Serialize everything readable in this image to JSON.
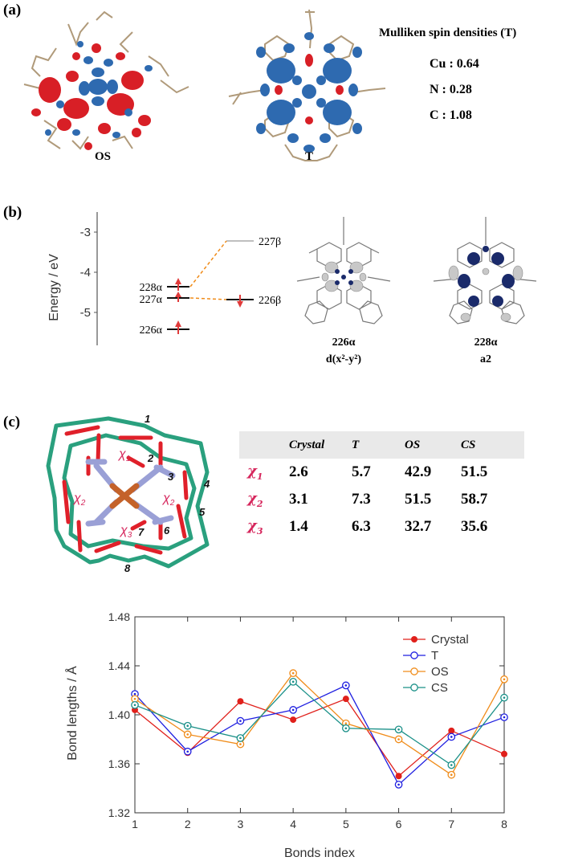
{
  "panel_a": {
    "label": "(a)",
    "mol_os_label": "OS",
    "mol_t_label": "T",
    "spin_title": "Mulliken spin densities (T)",
    "spin_rows": [
      "Cu : 0.64",
      "N : 0.28",
      "C : 1.08"
    ]
  },
  "panel_b": {
    "label": "(b)",
    "y_axis_label": "Energy / eV",
    "y_ticks": [
      "-3",
      "-4",
      "-5"
    ],
    "levels_left": [
      "228α",
      "227α",
      "226α"
    ],
    "level_right_top": "227β",
    "level_right_mid": "226β",
    "orbital1_name": "226α",
    "orbital1_sym": "d(x²-y²)",
    "orbital2_name": "228α",
    "orbital2_sym": "a2"
  },
  "panel_c": {
    "label": "(c)",
    "bond_numbers": [
      "1",
      "2",
      "3",
      "4",
      "5",
      "6",
      "7",
      "8"
    ],
    "chi_labels": [
      "χ1",
      "χ2",
      "χ2",
      "χ3"
    ],
    "table": {
      "headers": [
        "",
        "Crystal",
        "T",
        "OS",
        "CS"
      ],
      "rows": [
        {
          "chi": "χ",
          "sub": "1",
          "values": [
            "2.6",
            "5.7",
            "42.9",
            "51.5"
          ]
        },
        {
          "chi": "χ",
          "sub": "2",
          "values": [
            "3.1",
            "7.3",
            "51.5",
            "58.7"
          ]
        },
        {
          "chi": "χ",
          "sub": "3",
          "values": [
            "1.4",
            "6.3",
            "32.7",
            "35.6"
          ]
        }
      ]
    }
  },
  "colors": {
    "crystal": "#e0201b",
    "t": "#1f1fe0",
    "os": "#f08c1a",
    "cs": "#1a9088",
    "spin_blue": "#2e6ab0",
    "spin_red": "#d81f26",
    "ring_green": "#2aa07e",
    "ring_red": "#e0202a",
    "n_violet": "#9aa0d6",
    "cu_orange": "#c4622a"
  },
  "chart_data": {
    "type": "line",
    "x": [
      1,
      2,
      3,
      4,
      5,
      6,
      7,
      8
    ],
    "xlabel": "Bonds index",
    "ylabel": "Bond lengths / Å",
    "xlim": [
      1,
      8
    ],
    "ylim": [
      1.32,
      1.48
    ],
    "yticks": [
      "1.32",
      "1.36",
      "1.40",
      "1.44",
      "1.48"
    ],
    "xticks": [
      "1",
      "2",
      "3",
      "4",
      "5",
      "6",
      "7",
      "8"
    ],
    "legend_position": "top-right",
    "series": [
      {
        "name": "Crystal",
        "color": "#e0201b",
        "marker": "filled",
        "values": [
          1.404,
          1.369,
          1.411,
          1.396,
          1.413,
          1.35,
          1.387,
          1.368
        ]
      },
      {
        "name": "T",
        "color": "#1f1fe0",
        "marker": "open",
        "values": [
          1.417,
          1.37,
          1.395,
          1.404,
          1.424,
          1.343,
          1.382,
          1.398
        ]
      },
      {
        "name": "OS",
        "color": "#f08c1a",
        "marker": "open",
        "values": [
          1.413,
          1.384,
          1.376,
          1.434,
          1.393,
          1.38,
          1.351,
          1.429
        ]
      },
      {
        "name": "CS",
        "color": "#1a9088",
        "marker": "open",
        "values": [
          1.408,
          1.391,
          1.381,
          1.427,
          1.389,
          1.388,
          1.359,
          1.414
        ]
      }
    ]
  }
}
